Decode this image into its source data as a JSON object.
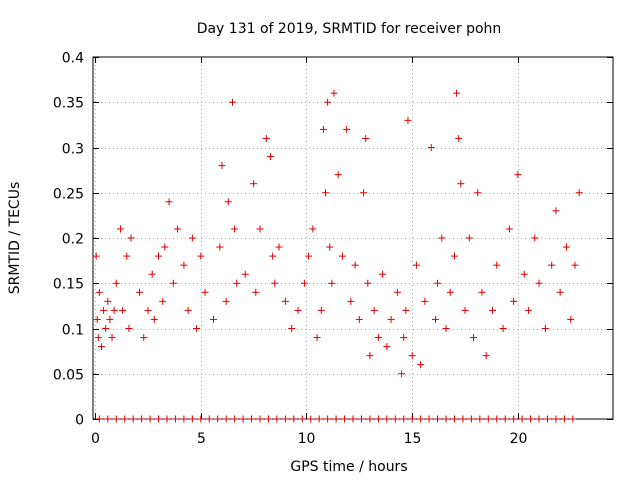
{
  "chart_data": {
    "type": "scatter",
    "title": "Day 131 of 2019, SRMTID for receiver pohn",
    "xlabel": "GPS time / hours",
    "ylabel": "SRMTID / TECUs",
    "xlim": [
      -0.1,
      24.5
    ],
    "ylim": [
      0,
      0.4
    ],
    "x_ticks": [
      0,
      5,
      10,
      15,
      20
    ],
    "x_tick_labels": [
      "0",
      "5",
      "10",
      "15",
      "20"
    ],
    "y_ticks": [
      0,
      0.05,
      0.1,
      0.15,
      0.2,
      0.25,
      0.3,
      0.35,
      0.4
    ],
    "y_tick_labels": [
      "0",
      "0.05",
      "0.1",
      "0.15",
      "0.2",
      "0.25",
      "0.3",
      "0.35",
      "0.4"
    ],
    "grid": true,
    "legend": "none",
    "marker": "+",
    "series": [
      {
        "name": "SRMTID",
        "color": "#e00000",
        "x": [
          0.05,
          0.1,
          0.15,
          0.2,
          0.3,
          0.4,
          0.5,
          0.6,
          0.7,
          0.8,
          0.9,
          1.0,
          1.2,
          1.3,
          1.5,
          1.6,
          1.7,
          2.1,
          2.3,
          2.5,
          2.7,
          2.8,
          3.0,
          3.2,
          3.3,
          3.5,
          3.7,
          3.9,
          4.2,
          4.4,
          4.6,
          4.8,
          5.0,
          5.2,
          5.6,
          5.9,
          6.0,
          6.2,
          6.3,
          6.5,
          6.6,
          6.7,
          7.1,
          7.5,
          7.6,
          7.8,
          8.1,
          8.3,
          8.4,
          8.5,
          8.7,
          9.0,
          9.3,
          9.6,
          9.9,
          10.1,
          10.3,
          10.5,
          10.7,
          10.8,
          10.9,
          11.0,
          11.1,
          11.2,
          11.3,
          11.5,
          11.7,
          11.9,
          12.1,
          12.3,
          12.5,
          12.7,
          12.8,
          12.9,
          13.0,
          13.2,
          13.4,
          13.6,
          13.8,
          14.0,
          14.3,
          14.5,
          14.6,
          14.7,
          14.8,
          15.0,
          15.2,
          15.4,
          15.6,
          15.9,
          16.1,
          16.2,
          16.4,
          16.6,
          16.8,
          17.0,
          17.1,
          17.2,
          17.3,
          17.5,
          17.7,
          17.9,
          18.1,
          18.3,
          18.5,
          18.8,
          19.0,
          19.3,
          19.6,
          19.8,
          20.0,
          20.3,
          20.5,
          20.8,
          21.0,
          21.3,
          21.6,
          21.8,
          22.0,
          22.3,
          22.5,
          22.7,
          22.9
        ],
        "y": [
          0.18,
          0.11,
          0.09,
          0.14,
          0.08,
          0.12,
          0.1,
          0.13,
          0.11,
          0.09,
          0.12,
          0.15,
          0.21,
          0.12,
          0.18,
          0.1,
          0.2,
          0.14,
          0.09,
          0.12,
          0.16,
          0.11,
          0.18,
          0.13,
          0.19,
          0.24,
          0.15,
          0.21,
          0.17,
          0.12,
          0.2,
          0.1,
          0.18,
          0.14,
          0.11,
          0.19,
          0.28,
          0.13,
          0.24,
          0.35,
          0.21,
          0.15,
          0.16,
          0.26,
          0.14,
          0.21,
          0.31,
          0.29,
          0.18,
          0.15,
          0.19,
          0.13,
          0.1,
          0.12,
          0.15,
          0.18,
          0.21,
          0.09,
          0.12,
          0.32,
          0.25,
          0.35,
          0.19,
          0.15,
          0.36,
          0.27,
          0.18,
          0.32,
          0.13,
          0.17,
          0.11,
          0.25,
          0.31,
          0.15,
          0.07,
          0.12,
          0.09,
          0.16,
          0.08,
          0.11,
          0.14,
          0.05,
          0.09,
          0.12,
          0.33,
          0.07,
          0.17,
          0.06,
          0.13,
          0.3,
          0.11,
          0.15,
          0.2,
          0.1,
          0.14,
          0.18,
          0.36,
          0.31,
          0.26,
          0.12,
          0.2,
          0.09,
          0.25,
          0.14,
          0.07,
          0.12,
          0.17,
          0.1,
          0.21,
          0.13,
          0.27,
          0.16,
          0.12,
          0.2,
          0.15,
          0.1,
          0.17,
          0.23,
          0.14,
          0.19,
          0.11,
          0.17,
          0.25
        ]
      },
      {
        "name": "SRMTID baseline",
        "color": "#e00000",
        "x": [
          0.2,
          0.6,
          1.0,
          1.4,
          1.8,
          2.2,
          2.6,
          3.0,
          3.4,
          3.8,
          4.2,
          4.6,
          5.0,
          5.4,
          5.8,
          6.2,
          6.6,
          7.0,
          7.4,
          7.8,
          8.2,
          8.6,
          9.0,
          9.4,
          9.8,
          10.2,
          10.6,
          11.0,
          11.4,
          11.8,
          12.2,
          12.6,
          13.0,
          13.4,
          13.8,
          14.2,
          14.6,
          15.0,
          15.4,
          15.8,
          16.2,
          16.6,
          17.0,
          17.4,
          17.8,
          18.2,
          18.6,
          19.0,
          19.4,
          19.8,
          20.2,
          20.6,
          21.0,
          21.4,
          21.8,
          22.2,
          22.6
        ],
        "y": [
          0,
          0,
          0,
          0,
          0,
          0,
          0,
          0,
          0,
          0,
          0,
          0,
          0,
          0,
          0,
          0,
          0,
          0,
          0,
          0,
          0,
          0,
          0,
          0,
          0,
          0,
          0,
          0,
          0,
          0,
          0,
          0,
          0,
          0,
          0,
          0,
          0,
          0,
          0,
          0,
          0,
          0,
          0,
          0,
          0,
          0,
          0,
          0,
          0,
          0,
          0,
          0,
          0,
          0,
          0,
          0,
          0
        ]
      }
    ]
  }
}
